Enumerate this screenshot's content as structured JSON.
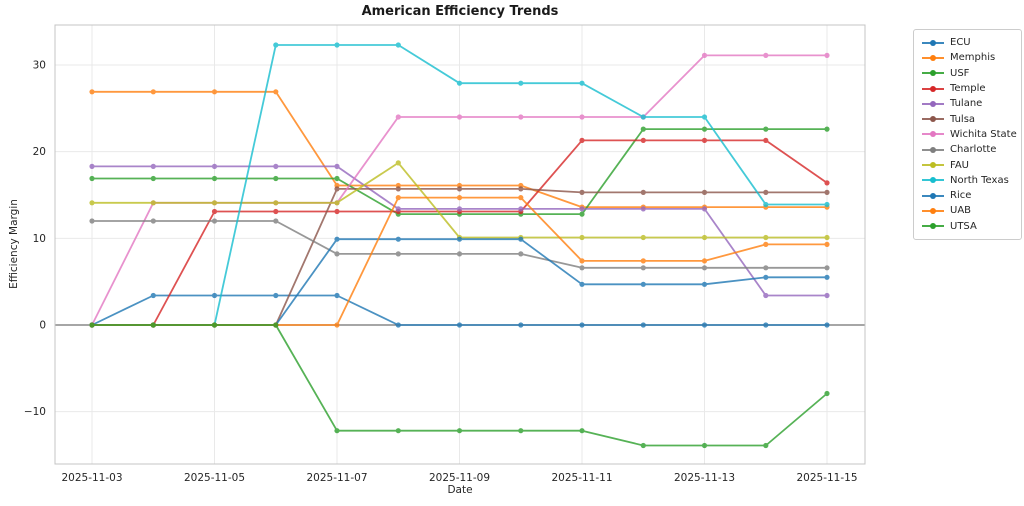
{
  "title": "American Efficiency Trends",
  "chart_data": {
    "type": "line",
    "title": "American Efficiency Trends",
    "xlabel": "Date",
    "ylabel": "Efficiency Margin",
    "x": [
      "2025-11-03",
      "2025-11-04",
      "2025-11-05",
      "2025-11-06",
      "2025-11-07",
      "2025-11-08",
      "2025-11-09",
      "2025-11-10",
      "2025-11-11",
      "2025-11-12",
      "2025-11-13",
      "2025-11-14",
      "2025-11-15"
    ],
    "x_tick_labels": [
      "2025-11-03",
      "2025-11-05",
      "2025-11-07",
      "2025-11-09",
      "2025-11-11",
      "2025-11-13",
      "2025-11-15"
    ],
    "y_ticks": [
      30,
      20,
      10,
      0,
      -10
    ],
    "ylim": [
      -16.2,
      34.6
    ],
    "grid": true,
    "zero_line": true,
    "legend_position": "outside-top-right",
    "marker": "circle",
    "series": [
      {
        "name": "ECU",
        "color": "#1f77b4",
        "values": [
          0,
          3.4,
          3.4,
          3.4,
          3.4,
          0,
          0,
          0,
          0,
          0,
          0,
          0,
          0
        ]
      },
      {
        "name": "Memphis",
        "color": "#ff7f0e",
        "values": [
          26.9,
          26.9,
          26.9,
          26.9,
          16.1,
          16.1,
          16.1,
          16.1,
          13.6,
          13.6,
          13.6,
          13.6,
          13.6
        ]
      },
      {
        "name": "USF",
        "color": "#2ca02c",
        "values": [
          16.9,
          16.9,
          16.9,
          16.9,
          16.9,
          12.8,
          12.8,
          12.8,
          12.8,
          22.6,
          22.6,
          22.6,
          22.6
        ]
      },
      {
        "name": "Temple",
        "color": "#d62728",
        "values": [
          0,
          0,
          13.1,
          13.1,
          13.1,
          13.1,
          13.1,
          13.1,
          21.3,
          21.3,
          21.3,
          21.3,
          16.4
        ]
      },
      {
        "name": "Tulane",
        "color": "#9467bd",
        "values": [
          18.3,
          18.3,
          18.3,
          18.3,
          18.3,
          13.4,
          13.4,
          13.4,
          13.4,
          13.4,
          13.4,
          3.4,
          3.4
        ]
      },
      {
        "name": "Tulsa",
        "color": "#8c564b",
        "values": [
          0,
          0,
          0,
          0,
          15.7,
          15.7,
          15.7,
          15.7,
          15.3,
          15.3,
          15.3,
          15.3,
          15.3
        ]
      },
      {
        "name": "Wichita State",
        "color": "#e377c2",
        "values": [
          0,
          14.1,
          14.1,
          14.1,
          14.1,
          24.0,
          24.0,
          24.0,
          24.0,
          24.0,
          31.1,
          31.1,
          31.1
        ]
      },
      {
        "name": "Charlotte",
        "color": "#7f7f7f",
        "values": [
          12.0,
          12.0,
          12.0,
          12.0,
          8.2,
          8.2,
          8.2,
          8.2,
          6.6,
          6.6,
          6.6,
          6.6,
          6.6
        ]
      },
      {
        "name": "FAU",
        "color": "#bcbd22",
        "values": [
          14.1,
          14.1,
          14.1,
          14.1,
          14.1,
          18.7,
          10.1,
          10.1,
          10.1,
          10.1,
          10.1,
          10.1,
          10.1
        ]
      },
      {
        "name": "North Texas",
        "color": "#17becf",
        "values": [
          0,
          0,
          0,
          32.3,
          32.3,
          32.3,
          27.9,
          27.9,
          27.9,
          24.0,
          24.0,
          13.9,
          13.9
        ]
      },
      {
        "name": "Rice",
        "color": "#1f77b4",
        "values": [
          0,
          0,
          0,
          0,
          9.9,
          9.9,
          9.9,
          9.9,
          4.7,
          4.7,
          4.7,
          5.5,
          5.5
        ]
      },
      {
        "name": "UAB",
        "color": "#ff7f0e",
        "values": [
          0,
          0,
          0,
          0,
          0,
          14.7,
          14.7,
          14.7,
          7.4,
          7.4,
          7.4,
          9.3,
          9.3
        ]
      },
      {
        "name": "UTSA",
        "color": "#2ca02c",
        "values": [
          0,
          0,
          0,
          0,
          -12.2,
          -12.2,
          -12.2,
          -12.2,
          -12.2,
          -13.9,
          -13.9,
          -13.9,
          -7.9
        ]
      }
    ]
  }
}
